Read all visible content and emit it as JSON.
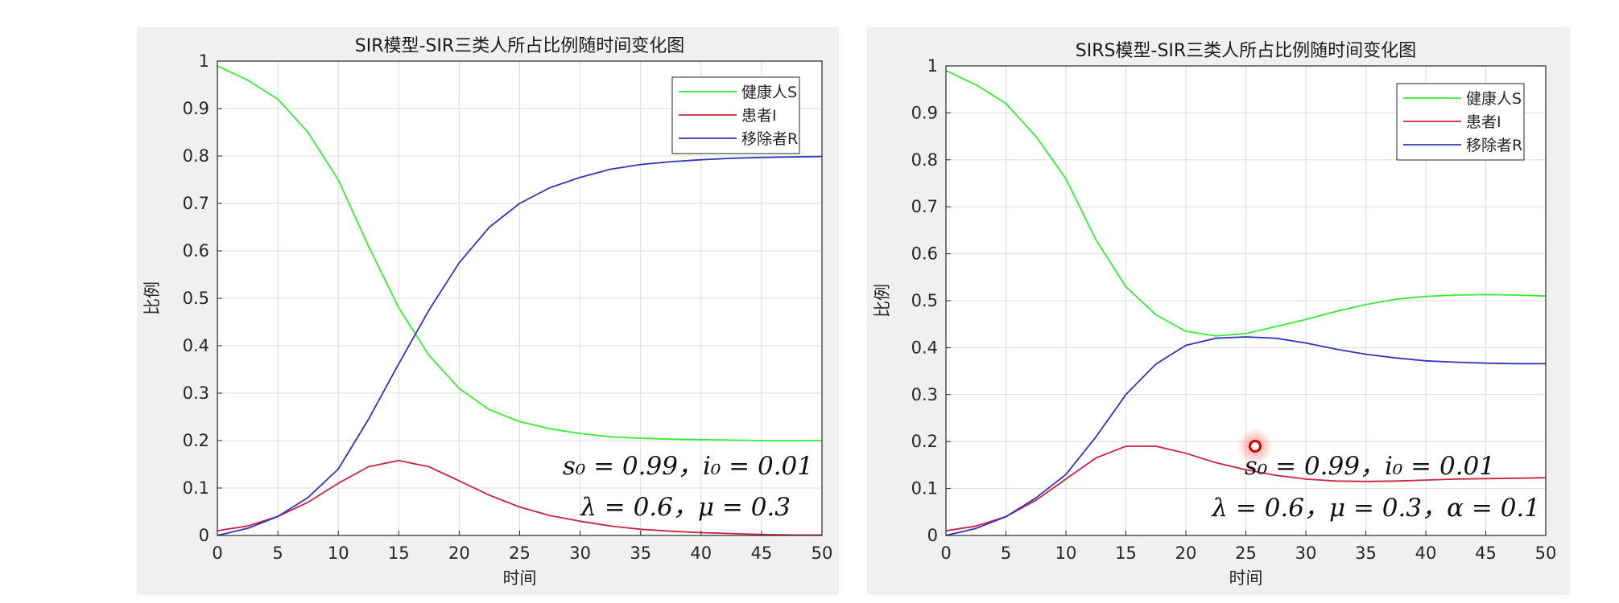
{
  "colors": {
    "susceptible": "#33ee33",
    "infected": "#cc2244",
    "removed": "#3333bb",
    "grid": "#dcdcdc",
    "panel_bg": "#f0f0f0"
  },
  "chart_data": [
    {
      "type": "line",
      "title": "SIR模型-SIR三类人所占比例随时间变化图",
      "xlabel": "时间",
      "ylabel": "比例",
      "xlim": [
        0,
        50
      ],
      "ylim": [
        0,
        1
      ],
      "xticks": [
        "0",
        "5",
        "10",
        "15",
        "20",
        "25",
        "30",
        "35",
        "40",
        "45",
        "50"
      ],
      "yticks": [
        "0",
        "0.1",
        "0.2",
        "0.3",
        "0.4",
        "0.5",
        "0.6",
        "0.7",
        "0.8",
        "0.9",
        "1"
      ],
      "grid": true,
      "legend_position": "top-right",
      "annotations": [
        "s₀ = 0.99，i₀ = 0.01",
        "λ = 0.6，μ = 0.3"
      ],
      "x": [
        0,
        2.5,
        5,
        7.5,
        10,
        12.5,
        15,
        17.5,
        20,
        22.5,
        25,
        27.5,
        30,
        32.5,
        35,
        37.5,
        40,
        42.5,
        45,
        47.5,
        50
      ],
      "series": [
        {
          "name": "健康人S",
          "values": [
            0.99,
            0.96,
            0.92,
            0.85,
            0.75,
            0.61,
            0.48,
            0.38,
            0.31,
            0.265,
            0.24,
            0.225,
            0.215,
            0.208,
            0.205,
            0.203,
            0.202,
            0.201,
            0.2,
            0.2,
            0.2
          ]
        },
        {
          "name": "患者I",
          "values": [
            0.01,
            0.02,
            0.04,
            0.07,
            0.11,
            0.145,
            0.158,
            0.145,
            0.115,
            0.085,
            0.06,
            0.042,
            0.03,
            0.02,
            0.013,
            0.009,
            0.006,
            0.004,
            0.002,
            0.001,
            0.001
          ]
        },
        {
          "name": "移除者R",
          "values": [
            0.0,
            0.015,
            0.04,
            0.08,
            0.14,
            0.245,
            0.362,
            0.475,
            0.575,
            0.65,
            0.7,
            0.733,
            0.755,
            0.772,
            0.782,
            0.788,
            0.792,
            0.795,
            0.797,
            0.798,
            0.799
          ]
        }
      ]
    },
    {
      "type": "line",
      "title": "SIRS模型-SIR三类人所占比例随时间变化图",
      "xlabel": "时间",
      "ylabel": "比例",
      "xlim": [
        0,
        50
      ],
      "ylim": [
        0,
        1
      ],
      "xticks": [
        "0",
        "5",
        "10",
        "15",
        "20",
        "25",
        "30",
        "35",
        "40",
        "45",
        "50"
      ],
      "yticks": [
        "0",
        "0.1",
        "0.2",
        "0.3",
        "0.4",
        "0.5",
        "0.6",
        "0.7",
        "0.8",
        "0.9",
        "1"
      ],
      "grid": true,
      "legend_position": "top-right",
      "annotations": [
        "s₀ = 0.99，i₀ = 0.01",
        "λ = 0.6，μ = 0.3，α = 0.1"
      ],
      "x": [
        0,
        2.5,
        5,
        7.5,
        10,
        12.5,
        15,
        17.5,
        20,
        22.5,
        25,
        27.5,
        30,
        32.5,
        35,
        37.5,
        40,
        42.5,
        45,
        47.5,
        50
      ],
      "series": [
        {
          "name": "健康人S",
          "values": [
            0.99,
            0.96,
            0.92,
            0.85,
            0.76,
            0.63,
            0.53,
            0.47,
            0.435,
            0.425,
            0.43,
            0.445,
            0.46,
            0.477,
            0.492,
            0.503,
            0.509,
            0.512,
            0.513,
            0.512,
            0.51
          ]
        },
        {
          "name": "患者I",
          "values": [
            0.01,
            0.02,
            0.04,
            0.075,
            0.12,
            0.165,
            0.19,
            0.19,
            0.175,
            0.155,
            0.14,
            0.128,
            0.12,
            0.116,
            0.115,
            0.116,
            0.118,
            0.12,
            0.121,
            0.122,
            0.123
          ]
        },
        {
          "name": "移除者R",
          "values": [
            0.0,
            0.015,
            0.04,
            0.08,
            0.13,
            0.21,
            0.3,
            0.365,
            0.405,
            0.42,
            0.423,
            0.42,
            0.41,
            0.397,
            0.386,
            0.378,
            0.372,
            0.369,
            0.367,
            0.366,
            0.366
          ]
        }
      ]
    }
  ]
}
